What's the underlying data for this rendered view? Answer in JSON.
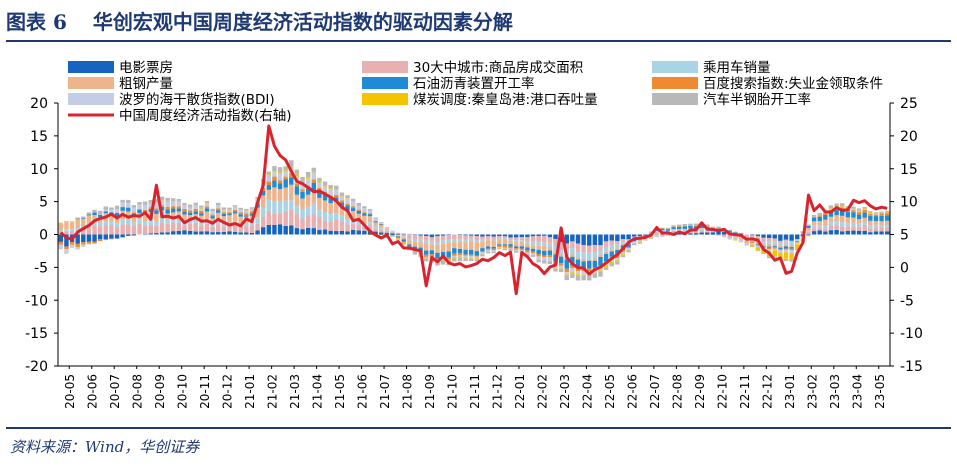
{
  "header": {
    "figure_label": "图表 6",
    "title": "华创宏观中国周度经济活动指数的驱动因素分解"
  },
  "footer": {
    "source": "资料来源：Wind，华创证券"
  },
  "colors": {
    "title": "#1f3a72",
    "movie": "#1565c0",
    "house": "#e8b0b0",
    "car": "#a9d4e6",
    "steel": "#eeb48c",
    "asphalt": "#1f8ad6",
    "baidu": "#f08a30",
    "bdi": "#c5cde6",
    "coal": "#f5c400",
    "tire": "#b8b8b8",
    "index_line": "#d9232e"
  },
  "chart_data": {
    "type": "bar",
    "stacked": true,
    "title": "",
    "left_axis": {
      "ylim": [
        -20,
        20
      ],
      "ticks": [
        -20,
        -15,
        -10,
        -5,
        0,
        5,
        10,
        15,
        20
      ]
    },
    "right_axis": {
      "ylim": [
        -15,
        25
      ],
      "ticks": [
        -15,
        -10,
        -5,
        0,
        5,
        10,
        15,
        20,
        25
      ],
      "label": "右轴"
    },
    "x_tick_labels": [
      "20-05",
      "20-06",
      "20-07",
      "20-08",
      "20-09",
      "20-10",
      "20-11",
      "20-12",
      "21-01",
      "21-02",
      "21-03",
      "21-04",
      "21-05",
      "21-06",
      "21-07",
      "21-08",
      "21-09",
      "21-10",
      "21-11",
      "21-12",
      "22-01",
      "22-02",
      "22-03",
      "22-04",
      "22-05",
      "22-06",
      "22-07",
      "22-08",
      "22-09",
      "22-10",
      "22-11",
      "22-12",
      "23-01",
      "23-02",
      "23-03",
      "23-04",
      "23-05"
    ],
    "legend": [
      {
        "name": "电影票房",
        "color_key": "movie"
      },
      {
        "name": "30大中城市:商品房成交面积",
        "color_key": "house"
      },
      {
        "name": "乘用车销量",
        "color_key": "car"
      },
      {
        "name": "粗钢产量",
        "color_key": "steel"
      },
      {
        "name": "石油沥青装置开工率",
        "color_key": "asphalt"
      },
      {
        "name": "百度搜索指数:失业金领取条件",
        "color_key": "baidu"
      },
      {
        "name": "波罗的海干散货指数(BDI)",
        "color_key": "bdi"
      },
      {
        "name": "煤炭调度:秦皇岛港:港口吞吐量",
        "color_key": "coal"
      },
      {
        "name": "汽车半钢胎开工率",
        "color_key": "tire"
      },
      {
        "name": "中国周度经济活动指数(右轴)",
        "color_key": "index_line",
        "kind": "line"
      }
    ],
    "series_keys": [
      "movie",
      "house",
      "car",
      "steel",
      "asphalt",
      "baidu",
      "bdi",
      "coal",
      "tire"
    ],
    "month_contributions": {
      "movie": [
        -1.5,
        -1.0,
        -0.5,
        0.0,
        0.3,
        0.6,
        0.5,
        0.4,
        0.3,
        1.5,
        1.0,
        0.8,
        0.6,
        0.6,
        0.3,
        0.0,
        -0.4,
        0.0,
        -0.3,
        -0.3,
        -0.5,
        -0.2,
        -1.2,
        -1.5,
        -1.2,
        -0.4,
        0.0,
        0.2,
        0.3,
        0.4,
        0.0,
        -0.6,
        -1.0,
        0.5,
        0.6,
        0.5,
        0.4
      ],
      "house": [
        0.5,
        1.2,
        1.5,
        1.4,
        1.2,
        1.0,
        1.0,
        1.0,
        1.0,
        2.0,
        2.0,
        1.8,
        1.2,
        0.8,
        0.3,
        -0.5,
        -0.7,
        -0.7,
        -0.6,
        -0.3,
        -0.5,
        -1.0,
        -1.2,
        -1.0,
        -0.7,
        -0.2,
        0.3,
        0.4,
        0.3,
        -0.3,
        -0.6,
        -0.5,
        -0.2,
        0.5,
        0.8,
        0.8,
        0.6
      ],
      "car": [
        0.3,
        0.5,
        0.6,
        0.6,
        0.7,
        0.6,
        0.6,
        0.5,
        0.6,
        1.8,
        1.5,
        1.2,
        0.8,
        0.5,
        0.2,
        -0.3,
        -0.5,
        -0.4,
        -0.3,
        -0.1,
        -0.3,
        -0.5,
        -0.8,
        -1.0,
        -0.6,
        -0.1,
        0.2,
        0.2,
        0.3,
        0.1,
        -0.2,
        -0.4,
        -0.5,
        0.4,
        0.6,
        0.5,
        0.4
      ],
      "steel": [
        1.2,
        1.0,
        1.2,
        1.2,
        1.2,
        1.0,
        1.0,
        1.0,
        1.1,
        2.0,
        2.2,
        2.0,
        1.5,
        1.0,
        0.2,
        -0.5,
        -1.0,
        -1.2,
        -1.1,
        -0.8,
        -0.6,
        -0.6,
        -0.4,
        -0.3,
        -0.3,
        -0.2,
        -0.2,
        0.0,
        0.1,
        0.0,
        -0.2,
        -0.3,
        -0.3,
        0.6,
        0.8,
        0.7,
        0.5
      ],
      "asphalt": [
        0.0,
        0.3,
        0.5,
        0.5,
        0.6,
        0.4,
        0.4,
        0.3,
        0.3,
        1.0,
        1.2,
        1.0,
        0.8,
        0.4,
        0.0,
        -0.4,
        -0.7,
        -0.8,
        -0.6,
        -0.2,
        -0.4,
        -0.6,
        -1.2,
        -1.4,
        -1.0,
        -0.3,
        0.2,
        0.3,
        0.4,
        0.3,
        0.0,
        -0.2,
        -0.3,
        0.5,
        0.8,
        0.9,
        0.7
      ],
      "baidu": [
        -0.5,
        -0.3,
        0.0,
        0.2,
        0.3,
        0.3,
        0.3,
        0.2,
        0.3,
        0.5,
        0.5,
        0.4,
        0.3,
        0.2,
        0.0,
        -0.2,
        -0.3,
        -0.3,
        -0.2,
        -0.2,
        -0.3,
        -0.3,
        -0.5,
        -0.5,
        -0.4,
        -0.1,
        0.0,
        0.1,
        0.1,
        0.0,
        -0.1,
        -0.2,
        -0.2,
        0.2,
        0.3,
        0.4,
        0.3
      ],
      "bdi": [
        -0.6,
        0.0,
        0.5,
        0.6,
        0.7,
        0.6,
        0.4,
        0.3,
        0.5,
        0.8,
        0.9,
        0.9,
        0.7,
        0.5,
        0.2,
        0.1,
        -0.1,
        -0.2,
        -0.3,
        -0.1,
        -0.2,
        -0.5,
        -0.5,
        -0.4,
        -0.3,
        -0.3,
        -0.2,
        -0.1,
        0.0,
        -0.1,
        -0.3,
        -0.3,
        -0.4,
        0.0,
        0.2,
        0.1,
        0.0
      ],
      "coal": [
        0.1,
        0.0,
        0.0,
        0.0,
        0.1,
        0.1,
        0.1,
        0.1,
        0.0,
        0.2,
        0.3,
        0.2,
        0.1,
        0.0,
        -0.1,
        -0.1,
        -0.2,
        -0.2,
        -0.1,
        -0.1,
        0.0,
        0.0,
        -0.1,
        -0.2,
        -0.2,
        -0.1,
        0.0,
        0.0,
        0.0,
        0.0,
        -0.1,
        -0.7,
        -1.0,
        0.0,
        0.1,
        0.1,
        0.1
      ],
      "tire": [
        0.0,
        0.4,
        0.5,
        0.5,
        0.4,
        0.3,
        0.3,
        0.3,
        0.2,
        0.7,
        0.8,
        0.6,
        0.4,
        0.3,
        0.0,
        -0.3,
        -0.5,
        -0.5,
        -0.4,
        -0.2,
        -0.3,
        -0.4,
        -0.6,
        -0.7,
        -0.5,
        -0.2,
        0.1,
        0.2,
        0.3,
        0.2,
        0.0,
        -0.2,
        -0.3,
        0.3,
        0.4,
        0.3,
        0.2
      ]
    },
    "index_right_axis_monthly": [
      4.8,
      7.5,
      7.6,
      7.8,
      7.9,
      7.2,
      7.2,
      6.6,
      7.0,
      18.5,
      13.5,
      11.5,
      9.2,
      6.2,
      4.5,
      2.4,
      1.5,
      0.8,
      0.5,
      1.8,
      2.5,
      -0.6,
      1.0,
      -0.5,
      1.5,
      3.8,
      5.5,
      5.3,
      6.4,
      5.6,
      4.8,
      2.5,
      -0.8,
      9.0,
      8.6,
      9.8,
      8.8
    ],
    "index_peaks": [
      {
        "month": "20-09",
        "value": 12.5
      },
      {
        "month": "21-02",
        "value": 21.5
      },
      {
        "month": "21-09",
        "value": -2.8
      },
      {
        "month": "22-01",
        "value": -4.0
      },
      {
        "month": "22-03",
        "value": 6.0
      },
      {
        "month": "23-01",
        "value": -0.9
      },
      {
        "month": "23-02",
        "value": 11.0
      },
      {
        "month": "23-04",
        "value": 10.2
      }
    ]
  }
}
